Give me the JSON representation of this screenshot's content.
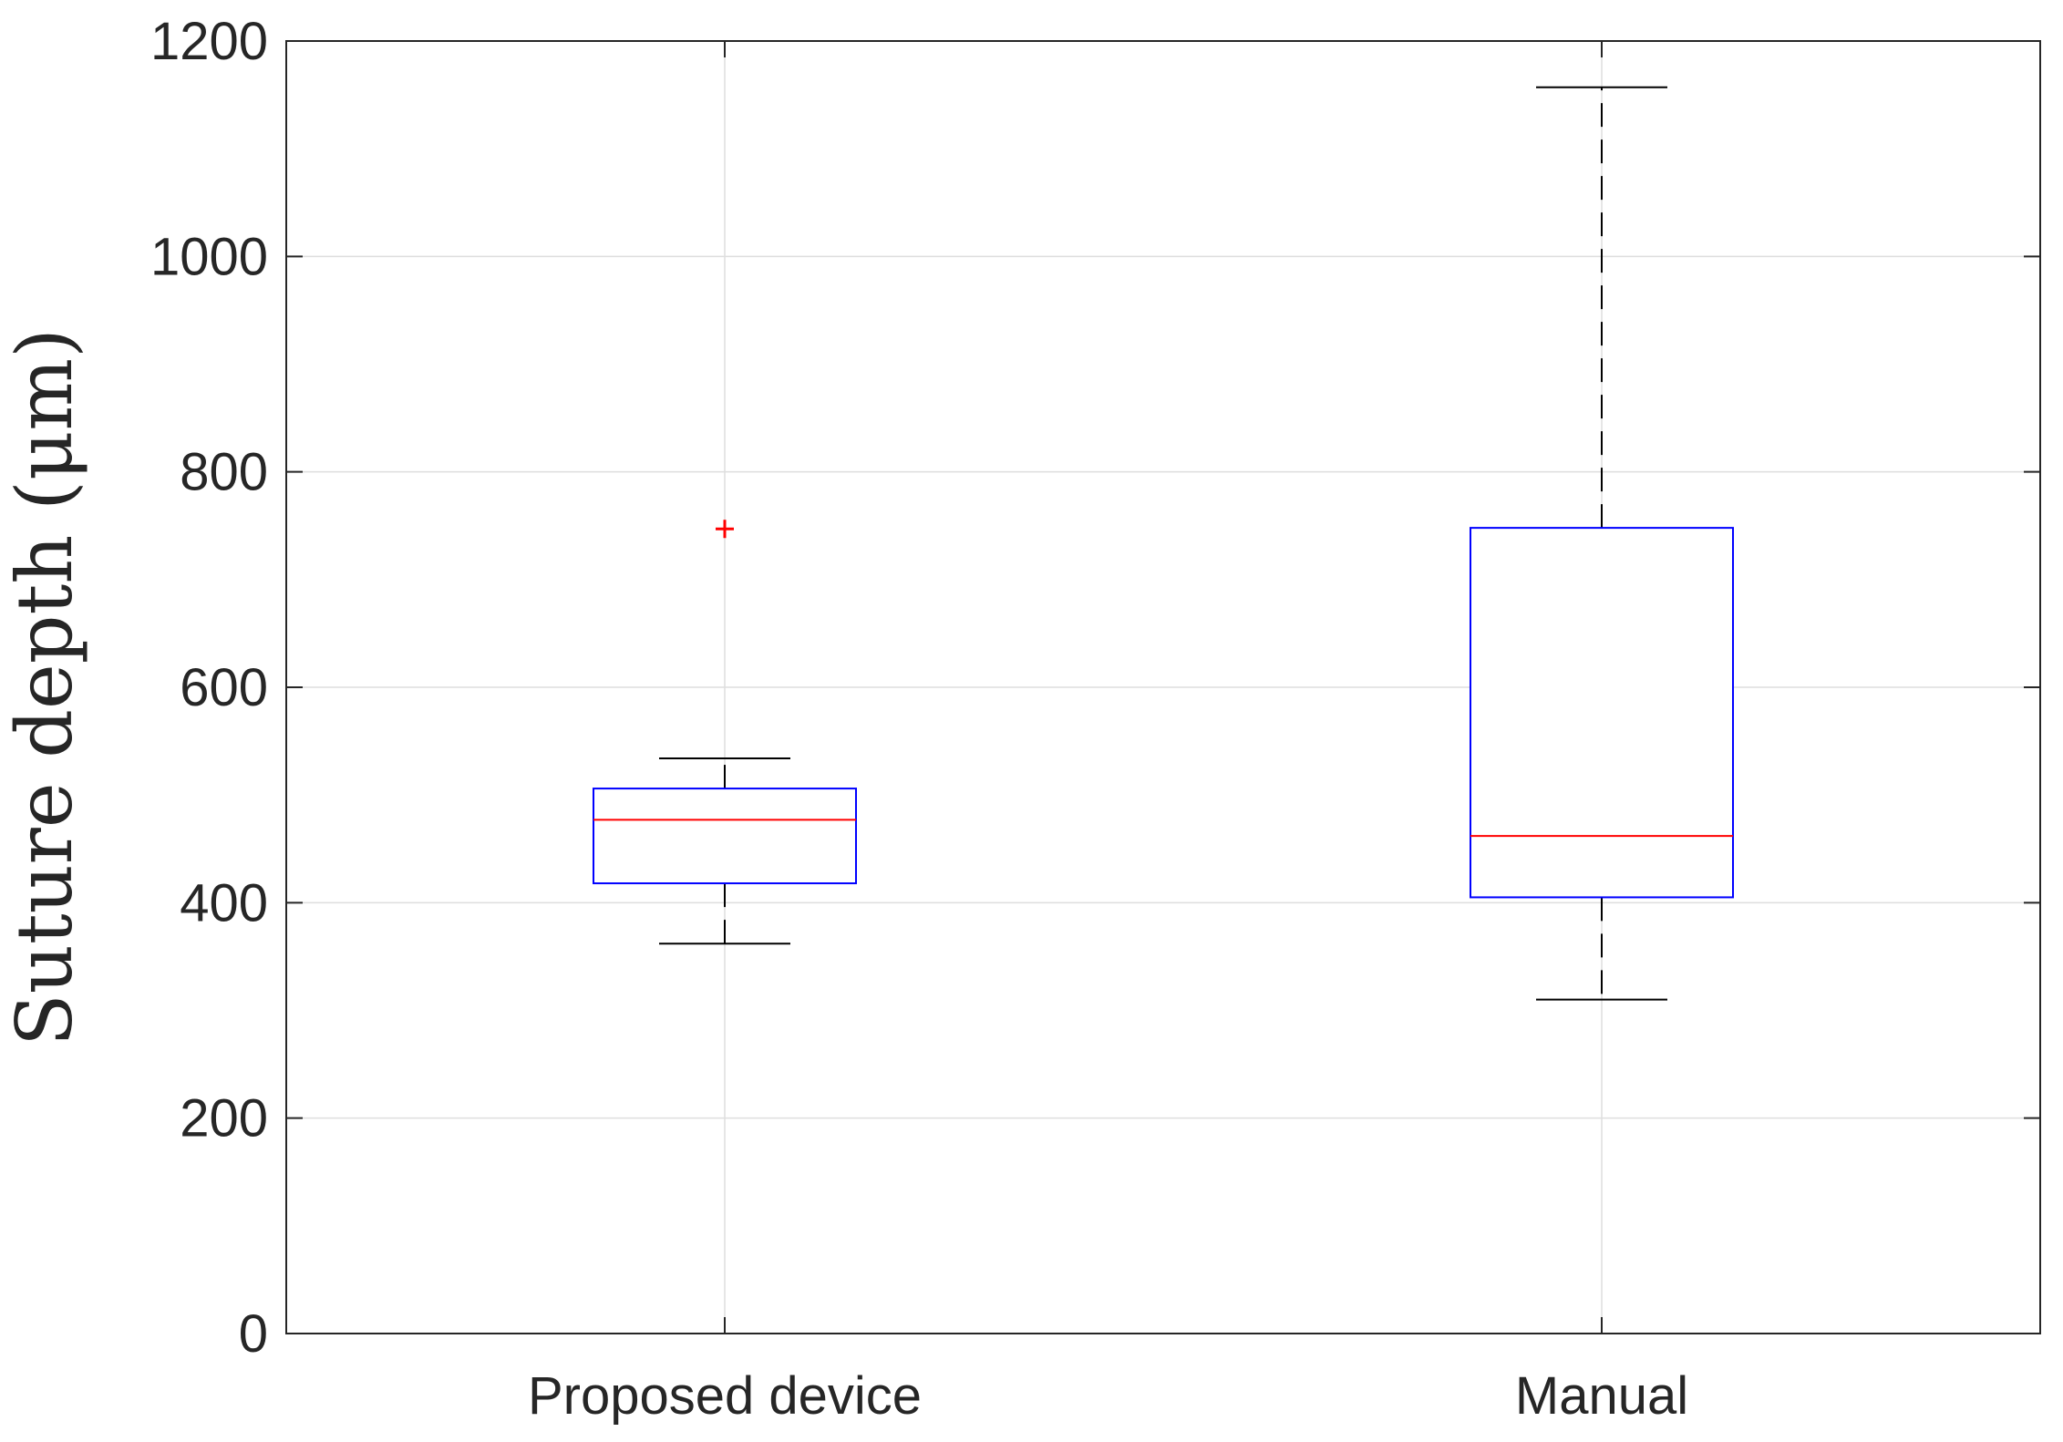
{
  "chart_data": {
    "type": "box",
    "title": "",
    "xlabel": "",
    "ylabel": "Suture depth (μm)",
    "ylim": [
      0,
      1200
    ],
    "yticks": [
      0,
      200,
      400,
      600,
      800,
      1000,
      1200
    ],
    "grid": true,
    "categories": [
      "Proposed device",
      "Manual"
    ],
    "boxes": [
      {
        "category": "Proposed device",
        "whisker_low": 362,
        "q1": 418,
        "median": 477,
        "q3": 506,
        "whisker_high": 534,
        "outliers": [
          747
        ]
      },
      {
        "category": "Manual",
        "whisker_low": 310,
        "q1": 405,
        "median": 462,
        "q3": 748,
        "whisker_high": 1157,
        "outliers": []
      }
    ],
    "colors": {
      "box": "#0000ff",
      "median": "#ff0000",
      "whisker": "#000000",
      "outlier": "#ff0000",
      "grid": "#dedede",
      "axis": "#262626"
    }
  }
}
